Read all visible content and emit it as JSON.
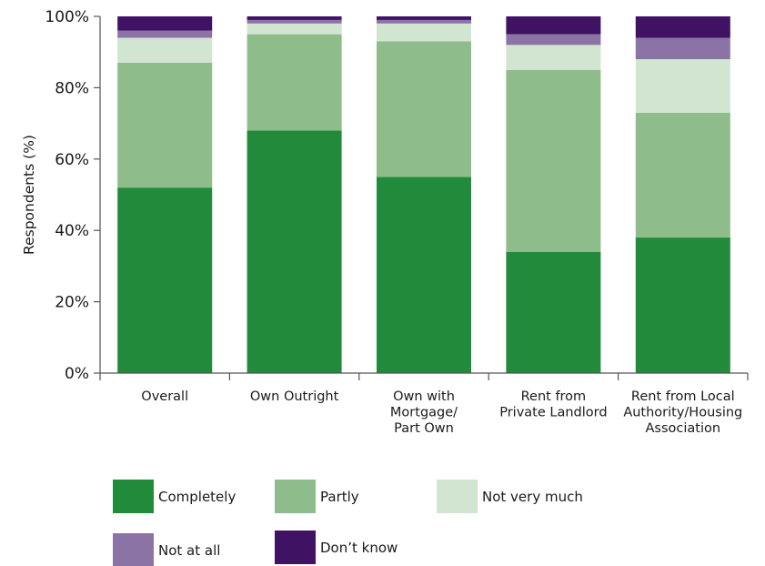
{
  "chart_data": {
    "type": "bar",
    "stacked": true,
    "title": "",
    "xlabel": "",
    "ylabel": "Respondents (%)",
    "ylim": [
      0,
      100
    ],
    "yticks": [
      "0%",
      "20%",
      "40%",
      "60%",
      "80%",
      "100%"
    ],
    "ytick_values": [
      0,
      20,
      40,
      60,
      80,
      100
    ],
    "grid": false,
    "legend_position": "bottom",
    "categories": [
      [
        "Overall"
      ],
      [
        "Own Outright"
      ],
      [
        "Own with",
        "Mortgage/",
        "Part Own"
      ],
      [
        "Rent from",
        "Private Landlord"
      ],
      [
        "Rent from Local",
        "Authority/Housing",
        "Association"
      ]
    ],
    "series": [
      {
        "name": "Completely",
        "color": "#228B3B",
        "values": [
          52,
          68,
          55,
          34,
          38
        ]
      },
      {
        "name": "Partly",
        "color": "#8FBC8B",
        "values": [
          35,
          27,
          38,
          51,
          35
        ]
      },
      {
        "name": "Not very much",
        "color": "#D1E5D1",
        "values": [
          7,
          3,
          5,
          7,
          15
        ]
      },
      {
        "name": "Not at all",
        "color": "#8C73A6",
        "values": [
          2,
          1,
          1,
          3,
          6
        ]
      },
      {
        "name": "Don’t know",
        "color": "#3F1264",
        "values": [
          4,
          1,
          1,
          5,
          6
        ]
      }
    ]
  }
}
